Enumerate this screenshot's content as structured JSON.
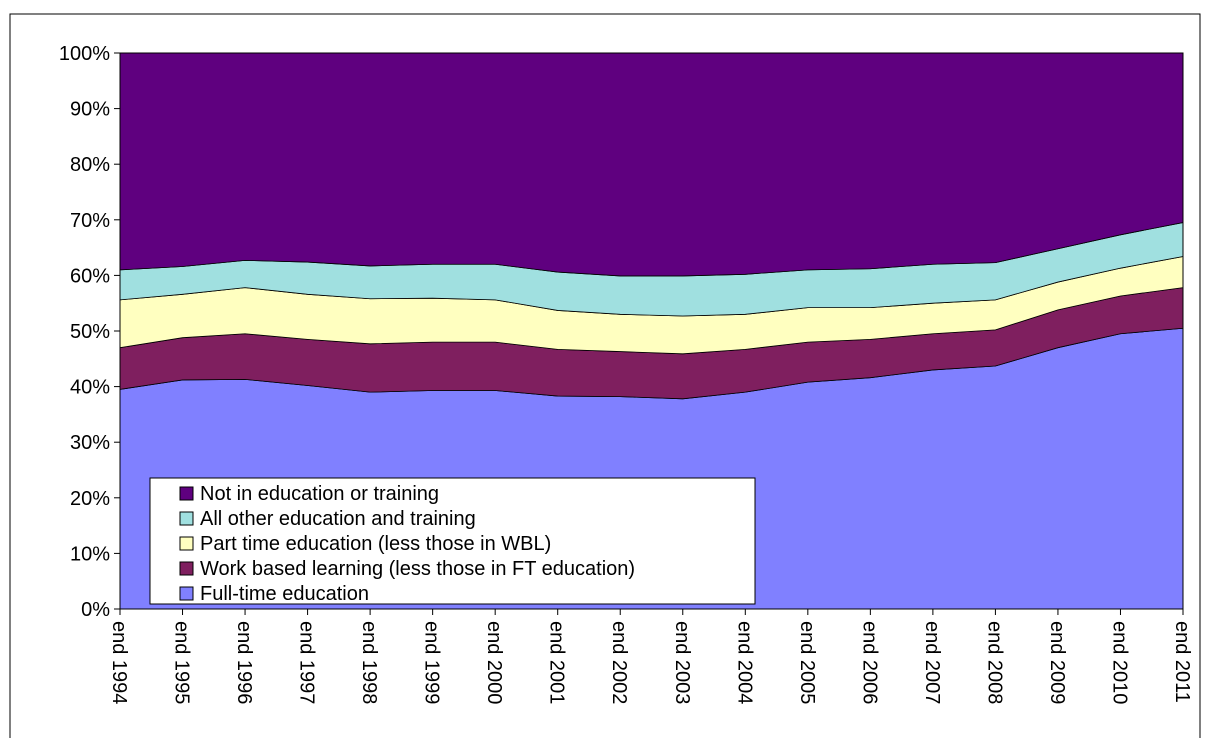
{
  "chart_data": {
    "type": "stacked_area",
    "categories": [
      "end 1994",
      "end 1995",
      "end 1996",
      "end 1997",
      "end 1998",
      "end 1999",
      "end 2000",
      "end 2001",
      "end 2002",
      "end 2003",
      "end 2004",
      "end 2005",
      "end 2006",
      "end 2007",
      "end 2008",
      "end 2009",
      "end 2010",
      "end 2011"
    ],
    "series": [
      {
        "name": "Full-time education",
        "color": "#8080ff",
        "values": [
          39.5,
          41.2,
          41.3,
          40.2,
          39.0,
          39.3,
          39.3,
          38.3,
          38.2,
          37.8,
          39.0,
          40.8,
          41.6,
          43.0,
          43.7,
          47.0,
          49.5,
          50.5
        ]
      },
      {
        "name": "Work based learning (less those in FT education)",
        "color": "#7f1f5f",
        "values": [
          7.5,
          7.6,
          8.2,
          8.3,
          8.7,
          8.7,
          8.7,
          8.4,
          8.1,
          8.1,
          7.7,
          7.2,
          6.9,
          6.5,
          6.5,
          6.8,
          6.8,
          7.3
        ]
      },
      {
        "name": "Part time education (less those in WBL)",
        "color": "#ffffc0",
        "values": [
          8.6,
          7.8,
          8.3,
          8.1,
          8.1,
          7.9,
          7.6,
          7.0,
          6.7,
          6.8,
          6.3,
          6.2,
          5.7,
          5.5,
          5.4,
          5.0,
          5.0,
          5.6
        ]
      },
      {
        "name": "All other education and training",
        "color": "#a0e0e0",
        "values": [
          5.4,
          5.0,
          4.9,
          5.8,
          5.9,
          6.1,
          6.4,
          6.9,
          6.9,
          7.2,
          7.2,
          6.8,
          7.0,
          7.0,
          6.7,
          6.0,
          6.0,
          6.1
        ]
      },
      {
        "name": "Not in education or training",
        "color": "#5f007f",
        "values": [
          39.0,
          38.4,
          37.3,
          37.6,
          38.3,
          38.0,
          38.0,
          39.4,
          40.1,
          40.1,
          39.8,
          39.0,
          38.8,
          38.0,
          37.7,
          35.2,
          32.7,
          30.5
        ]
      }
    ],
    "ylim": [
      0,
      100
    ],
    "yticks": [
      {
        "value": 0,
        "label": "0%"
      },
      {
        "value": 10,
        "label": "10%"
      },
      {
        "value": 20,
        "label": "20%"
      },
      {
        "value": 30,
        "label": "30%"
      },
      {
        "value": 40,
        "label": "40%"
      },
      {
        "value": 50,
        "label": "50%"
      },
      {
        "value": 60,
        "label": "60%"
      },
      {
        "value": 70,
        "label": "70%"
      },
      {
        "value": 80,
        "label": "80%"
      },
      {
        "value": 90,
        "label": "90%"
      },
      {
        "value": 100,
        "label": "100%"
      }
    ]
  }
}
